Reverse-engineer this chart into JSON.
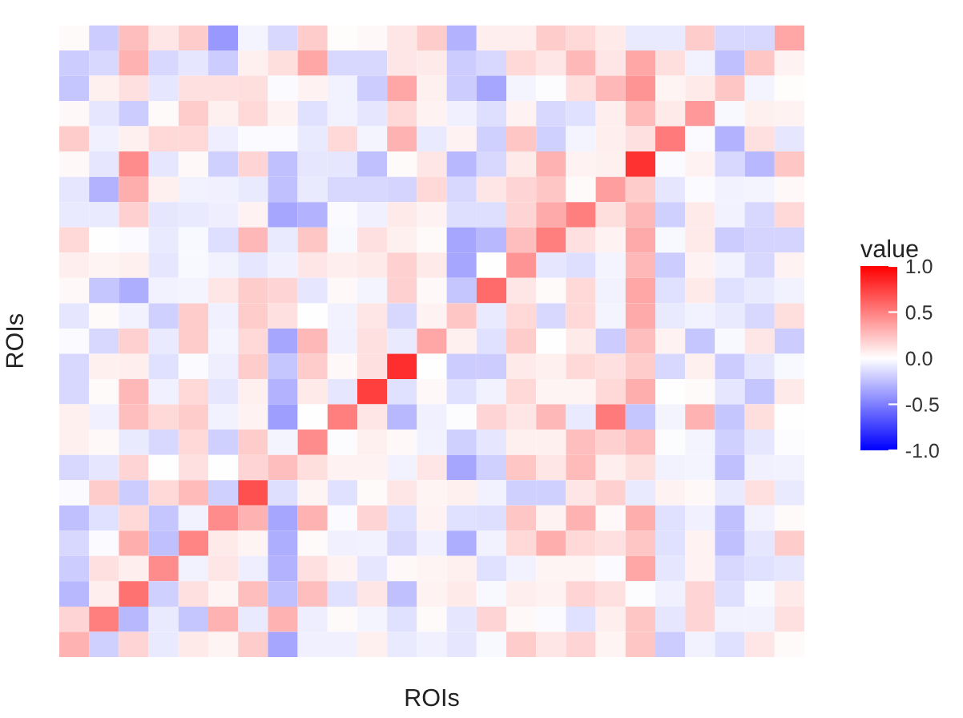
{
  "chart_data": {
    "type": "heatmap",
    "xlabel": "ROIs",
    "ylabel": "ROIs",
    "clabel": "value",
    "categories": [
      null,
      null,
      null,
      null,
      null,
      null,
      null,
      null,
      null,
      null,
      null,
      null,
      null,
      null,
      null,
      null,
      null,
      null,
      null,
      null,
      null,
      null,
      null,
      null,
      null
    ],
    "y_categories": [
      null,
      null,
      null,
      null,
      null,
      null,
      null,
      null,
      null,
      null,
      null,
      null,
      null,
      null,
      null,
      null,
      null,
      null,
      null,
      null,
      null,
      null,
      null,
      null,
      null
    ],
    "clim": [
      -1,
      1
    ],
    "cticks": [
      {
        "value": -1,
        "label": "-1.0"
      },
      -0.5,
      {
        "value": 0,
        "label": "0.0"
      },
      0.5,
      {
        "value": 1,
        "label": "1.0"
      }
    ],
    "colors": [
      "#0000ff",
      "#ffffff",
      "#ff0000"
    ],
    "tick_labels": false,
    "cells": [
      [
        0.02,
        -0.2,
        0.25,
        0.1,
        0.2,
        -0.4,
        -0.04,
        -0.15,
        0.2,
        0.01,
        0.03,
        0.1,
        0.2,
        -0.3,
        0.07,
        0.07,
        0.2,
        0.15,
        0.08,
        -0.08,
        -0.08,
        0.2,
        -0.15,
        -0.15,
        0.35
      ],
      [
        -0.2,
        -0.15,
        0.3,
        -0.15,
        -0.1,
        -0.2,
        0.06,
        0.13,
        0.35,
        -0.15,
        -0.15,
        0.1,
        0.08,
        -0.2,
        -0.15,
        0.15,
        0.1,
        0.28,
        0.1,
        0.35,
        0.13,
        -0.05,
        -0.25,
        0.22,
        0.05
      ],
      [
        -0.22,
        0.06,
        0.12,
        -0.1,
        0.12,
        0.12,
        0.13,
        -0.02,
        0.05,
        -0.05,
        -0.2,
        0.35,
        0.06,
        -0.2,
        -0.35,
        -0.04,
        -0.01,
        0.13,
        0.28,
        0.42,
        0.04,
        0.08,
        0.22,
        -0.04,
        0.01
      ],
      [
        0.03,
        -0.1,
        -0.2,
        0.02,
        0.2,
        0.06,
        0.15,
        0.05,
        -0.12,
        -0.05,
        -0.1,
        0.15,
        0.05,
        -0.06,
        -0.13,
        0.05,
        -0.15,
        -0.12,
        0.07,
        0.27,
        0.08,
        0.4,
        -0.03,
        0.06,
        0.05
      ],
      [
        0.2,
        -0.06,
        0.06,
        0.15,
        0.15,
        -0.07,
        -0.02,
        -0.02,
        -0.08,
        0.15,
        -0.04,
        0.3,
        -0.08,
        0.05,
        -0.18,
        0.22,
        -0.18,
        -0.04,
        0.07,
        0.12,
        0.52,
        -0.02,
        -0.3,
        0.12,
        -0.1
      ],
      [
        0.03,
        -0.1,
        0.45,
        -0.1,
        0.03,
        -0.18,
        0.17,
        -0.25,
        -0.1,
        -0.1,
        -0.25,
        0.02,
        0.1,
        -0.28,
        -0.15,
        0.08,
        0.3,
        0.05,
        0.06,
        0.8,
        -0.02,
        0.05,
        -0.15,
        -0.28,
        0.22
      ],
      [
        -0.1,
        -0.3,
        0.32,
        0.06,
        -0.05,
        -0.06,
        -0.08,
        -0.25,
        -0.08,
        -0.15,
        -0.15,
        -0.17,
        0.15,
        -0.15,
        0.1,
        0.17,
        0.22,
        0.02,
        0.38,
        0.2,
        -0.1,
        -0.02,
        -0.05,
        -0.04,
        0.03
      ],
      [
        -0.08,
        -0.08,
        0.18,
        -0.1,
        -0.08,
        -0.07,
        0.05,
        -0.35,
        -0.3,
        -0.02,
        -0.06,
        0.08,
        0.05,
        -0.13,
        -0.13,
        0.17,
        0.33,
        0.5,
        0.13,
        0.28,
        -0.18,
        0.08,
        -0.05,
        -0.15,
        0.15
      ],
      [
        0.15,
        0.0,
        -0.02,
        -0.08,
        -0.03,
        -0.13,
        0.28,
        -0.08,
        0.22,
        -0.03,
        0.12,
        0.06,
        0.02,
        -0.35,
        -0.28,
        0.25,
        0.5,
        0.12,
        0.05,
        0.33,
        -0.03,
        0.08,
        -0.2,
        -0.17,
        -0.17
      ],
      [
        0.07,
        0.04,
        0.06,
        -0.1,
        -0.03,
        -0.05,
        -0.1,
        -0.06,
        0.1,
        0.07,
        0.08,
        0.18,
        0.08,
        -0.35,
        0.0,
        0.42,
        -0.1,
        -0.13,
        -0.04,
        0.28,
        -0.2,
        0.05,
        -0.05,
        -0.15,
        0.05
      ],
      [
        0.03,
        -0.22,
        -0.32,
        -0.05,
        -0.04,
        0.1,
        0.2,
        0.17,
        -0.1,
        0.03,
        -0.04,
        0.18,
        0.03,
        -0.22,
        0.58,
        0.1,
        0.02,
        0.15,
        -0.05,
        0.35,
        -0.12,
        0.08,
        -0.12,
        -0.08,
        -0.05
      ],
      [
        -0.1,
        0.02,
        -0.05,
        -0.18,
        0.2,
        -0.06,
        0.2,
        0.12,
        0.0,
        -0.05,
        0.1,
        -0.15,
        0.05,
        0.22,
        -0.08,
        0.15,
        -0.15,
        0.15,
        -0.04,
        0.33,
        -0.08,
        -0.05,
        -0.08,
        -0.15,
        0.13
      ],
      [
        -0.02,
        -0.15,
        0.18,
        -0.08,
        0.2,
        -0.04,
        0.15,
        -0.35,
        0.28,
        -0.06,
        0.12,
        -0.08,
        0.35,
        0.06,
        -0.12,
        0.2,
        0.0,
        0.08,
        -0.2,
        0.25,
        0.05,
        -0.22,
        -0.03,
        0.1,
        -0.2
      ],
      [
        -0.15,
        0.06,
        0.07,
        -0.12,
        -0.02,
        -0.07,
        0.2,
        -0.22,
        0.2,
        0.03,
        0.12,
        0.82,
        0.0,
        -0.2,
        -0.2,
        0.08,
        0.06,
        0.15,
        0.12,
        0.2,
        -0.15,
        0.06,
        -0.2,
        -0.1,
        -0.03
      ],
      [
        -0.15,
        0.02,
        0.28,
        -0.06,
        0.15,
        -0.1,
        0.06,
        -0.3,
        0.08,
        -0.1,
        0.75,
        -0.12,
        0.03,
        -0.12,
        -0.05,
        0.15,
        0.04,
        0.04,
        0.15,
        0.32,
        0.0,
        0.02,
        -0.1,
        -0.22,
        0.08
      ],
      [
        0.06,
        -0.06,
        0.25,
        0.15,
        0.2,
        -0.05,
        0.05,
        -0.38,
        0.0,
        0.5,
        0.1,
        -0.28,
        -0.06,
        -0.01,
        0.17,
        0.1,
        0.28,
        -0.08,
        0.52,
        -0.22,
        -0.04,
        0.3,
        -0.22,
        0.13,
        0.0
      ],
      [
        0.06,
        0.03,
        -0.08,
        -0.15,
        0.15,
        -0.18,
        0.2,
        -0.04,
        0.45,
        -0.01,
        0.06,
        0.03,
        -0.05,
        -0.18,
        -0.1,
        0.06,
        0.06,
        0.25,
        0.18,
        0.25,
        -0.01,
        -0.04,
        -0.18,
        -0.1,
        -0.01
      ],
      [
        -0.15,
        -0.1,
        0.17,
        0.0,
        0.12,
        0.0,
        0.17,
        0.25,
        0.13,
        0.05,
        0.05,
        -0.05,
        0.1,
        -0.35,
        -0.18,
        0.22,
        0.1,
        0.27,
        0.07,
        0.13,
        -0.05,
        -0.04,
        -0.25,
        -0.06,
        -0.05
      ],
      [
        -0.02,
        0.2,
        -0.2,
        0.15,
        0.27,
        -0.18,
        0.68,
        -0.13,
        0.04,
        -0.12,
        0.02,
        0.1,
        0.04,
        0.06,
        -0.05,
        -0.18,
        -0.18,
        0.1,
        0.18,
        -0.08,
        0.05,
        0.03,
        -0.08,
        0.12,
        -0.08
      ],
      [
        -0.25,
        -0.12,
        0.15,
        -0.22,
        -0.05,
        0.45,
        0.3,
        -0.35,
        0.3,
        -0.02,
        0.17,
        -0.12,
        0.05,
        -0.12,
        -0.13,
        0.22,
        0.05,
        0.3,
        0.03,
        0.32,
        -0.12,
        -0.06,
        -0.25,
        -0.05,
        0.02
      ],
      [
        -0.15,
        -0.02,
        0.32,
        -0.25,
        0.48,
        0.08,
        0.04,
        -0.32,
        0.02,
        -0.06,
        -0.05,
        -0.15,
        -0.06,
        -0.32,
        -0.05,
        0.15,
        0.32,
        0.15,
        0.12,
        0.22,
        -0.12,
        0.05,
        -0.25,
        -0.1,
        0.2
      ],
      [
        -0.2,
        0.12,
        0.07,
        0.45,
        -0.05,
        0.1,
        -0.07,
        -0.3,
        0.12,
        0.05,
        -0.1,
        0.03,
        0.04,
        0.06,
        -0.12,
        -0.05,
        0.04,
        0.04,
        -0.02,
        0.35,
        -0.1,
        0.05,
        -0.15,
        -0.12,
        -0.1
      ],
      [
        -0.28,
        0.07,
        0.55,
        -0.18,
        0.12,
        0.04,
        0.25,
        -0.25,
        0.25,
        -0.12,
        0.1,
        -0.25,
        0.05,
        0.08,
        -0.03,
        0.07,
        0.05,
        0.17,
        0.12,
        -0.01,
        -0.06,
        0.17,
        -0.13,
        -0.03,
        0.08
      ],
      [
        0.17,
        0.5,
        -0.28,
        -0.08,
        -0.22,
        0.3,
        -0.08,
        0.3,
        -0.07,
        0.02,
        -0.04,
        -0.12,
        0.02,
        -0.1,
        0.17,
        0.03,
        -0.02,
        -0.12,
        0.07,
        0.22,
        -0.1,
        0.17,
        -0.05,
        -0.05,
        0.12
      ],
      [
        0.3,
        -0.18,
        0.17,
        -0.08,
        0.08,
        0.04,
        0.2,
        -0.35,
        -0.06,
        -0.06,
        0.06,
        -0.08,
        -0.06,
        -0.1,
        -0.03,
        0.2,
        0.1,
        0.17,
        0.04,
        0.22,
        -0.2,
        -0.05,
        -0.12,
        0.1,
        0.02
      ]
    ]
  }
}
